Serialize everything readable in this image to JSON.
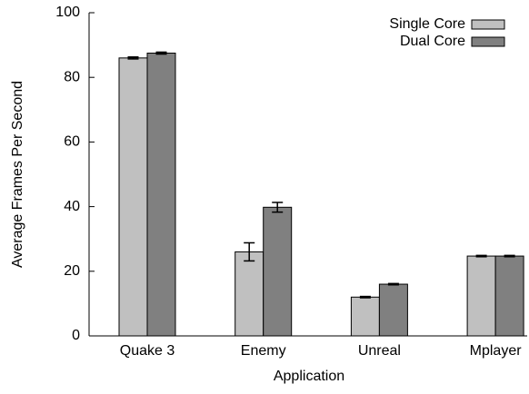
{
  "chart_data": {
    "type": "bar",
    "categories": [
      "Quake 3",
      "Enemy",
      "Unreal",
      "Mplayer"
    ],
    "series": [
      {
        "name": "Single Core",
        "color": "#c0c0c0",
        "values": [
          86,
          26,
          12,
          24.7
        ],
        "errors": [
          0.3,
          2.8,
          0.2,
          0.2
        ]
      },
      {
        "name": "Dual Core",
        "color": "#808080",
        "values": [
          87.5,
          39.8,
          16,
          24.7
        ],
        "errors": [
          0.3,
          1.5,
          0.2,
          0.2
        ]
      }
    ],
    "xlabel": "Application",
    "ylabel": "Average Frames Per Second",
    "ylim": [
      0,
      100
    ],
    "yticks": [
      0,
      20,
      40,
      60,
      80,
      100
    ],
    "legend": "upper right"
  }
}
